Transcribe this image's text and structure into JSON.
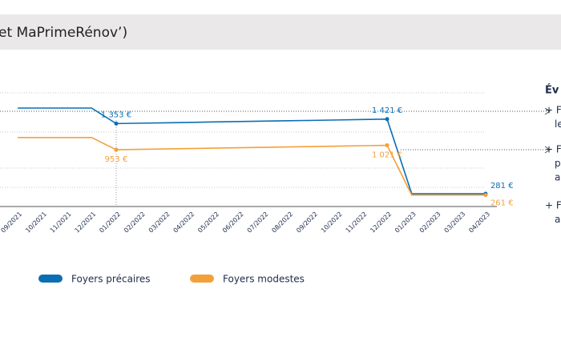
{
  "header": {
    "title": "et MaPrimeRénov’)"
  },
  "chart_data": {
    "type": "line",
    "categories": [
      "09/2021",
      "10/2021",
      "11/2021",
      "12/2021",
      "01/2022",
      "02/2022",
      "03/2022",
      "04/2022",
      "05/2022",
      "06/2022",
      "07/2022",
      "08/2022",
      "09/2022",
      "10/2022",
      "11/2022",
      "12/2022",
      "01/2023",
      "02/2023",
      "03/2023",
      "04/2023"
    ],
    "ylim": [
      0,
      1700
    ],
    "series": [
      {
        "name": "Foyers précaires",
        "color": "#0a6eb4",
        "values": [
          1590,
          1590,
          1590,
          1590,
          1353,
          1359,
          1365,
          1371,
          1378,
          1384,
          1390,
          1396,
          1402,
          1408,
          1415,
          1421,
          281,
          281,
          281,
          281
        ],
        "value_labels": [
          null,
          null,
          null,
          null,
          "1 353 €",
          null,
          null,
          null,
          null,
          null,
          null,
          null,
          null,
          null,
          null,
          "1 421 €",
          null,
          null,
          null,
          "281 €"
        ]
      },
      {
        "name": "Foyers modestes",
        "color": "#f4a03a",
        "values": [
          1140,
          1140,
          1140,
          1140,
          953,
          959,
          965,
          971,
          978,
          984,
          990,
          996,
          1002,
          1008,
          1015,
          1021,
          261,
          261,
          261,
          261
        ],
        "value_labels": [
          null,
          null,
          null,
          null,
          "953 €",
          null,
          null,
          null,
          null,
          null,
          null,
          null,
          null,
          null,
          null,
          "1 021 €",
          null,
          null,
          null,
          "261 €"
        ]
      }
    ]
  },
  "sidebar": {
    "heading": "Év",
    "items": [
      [
        "+ F",
        "le"
      ],
      [
        "+ F",
        "p",
        "a"
      ],
      [
        "+ F",
        "a"
      ]
    ]
  }
}
